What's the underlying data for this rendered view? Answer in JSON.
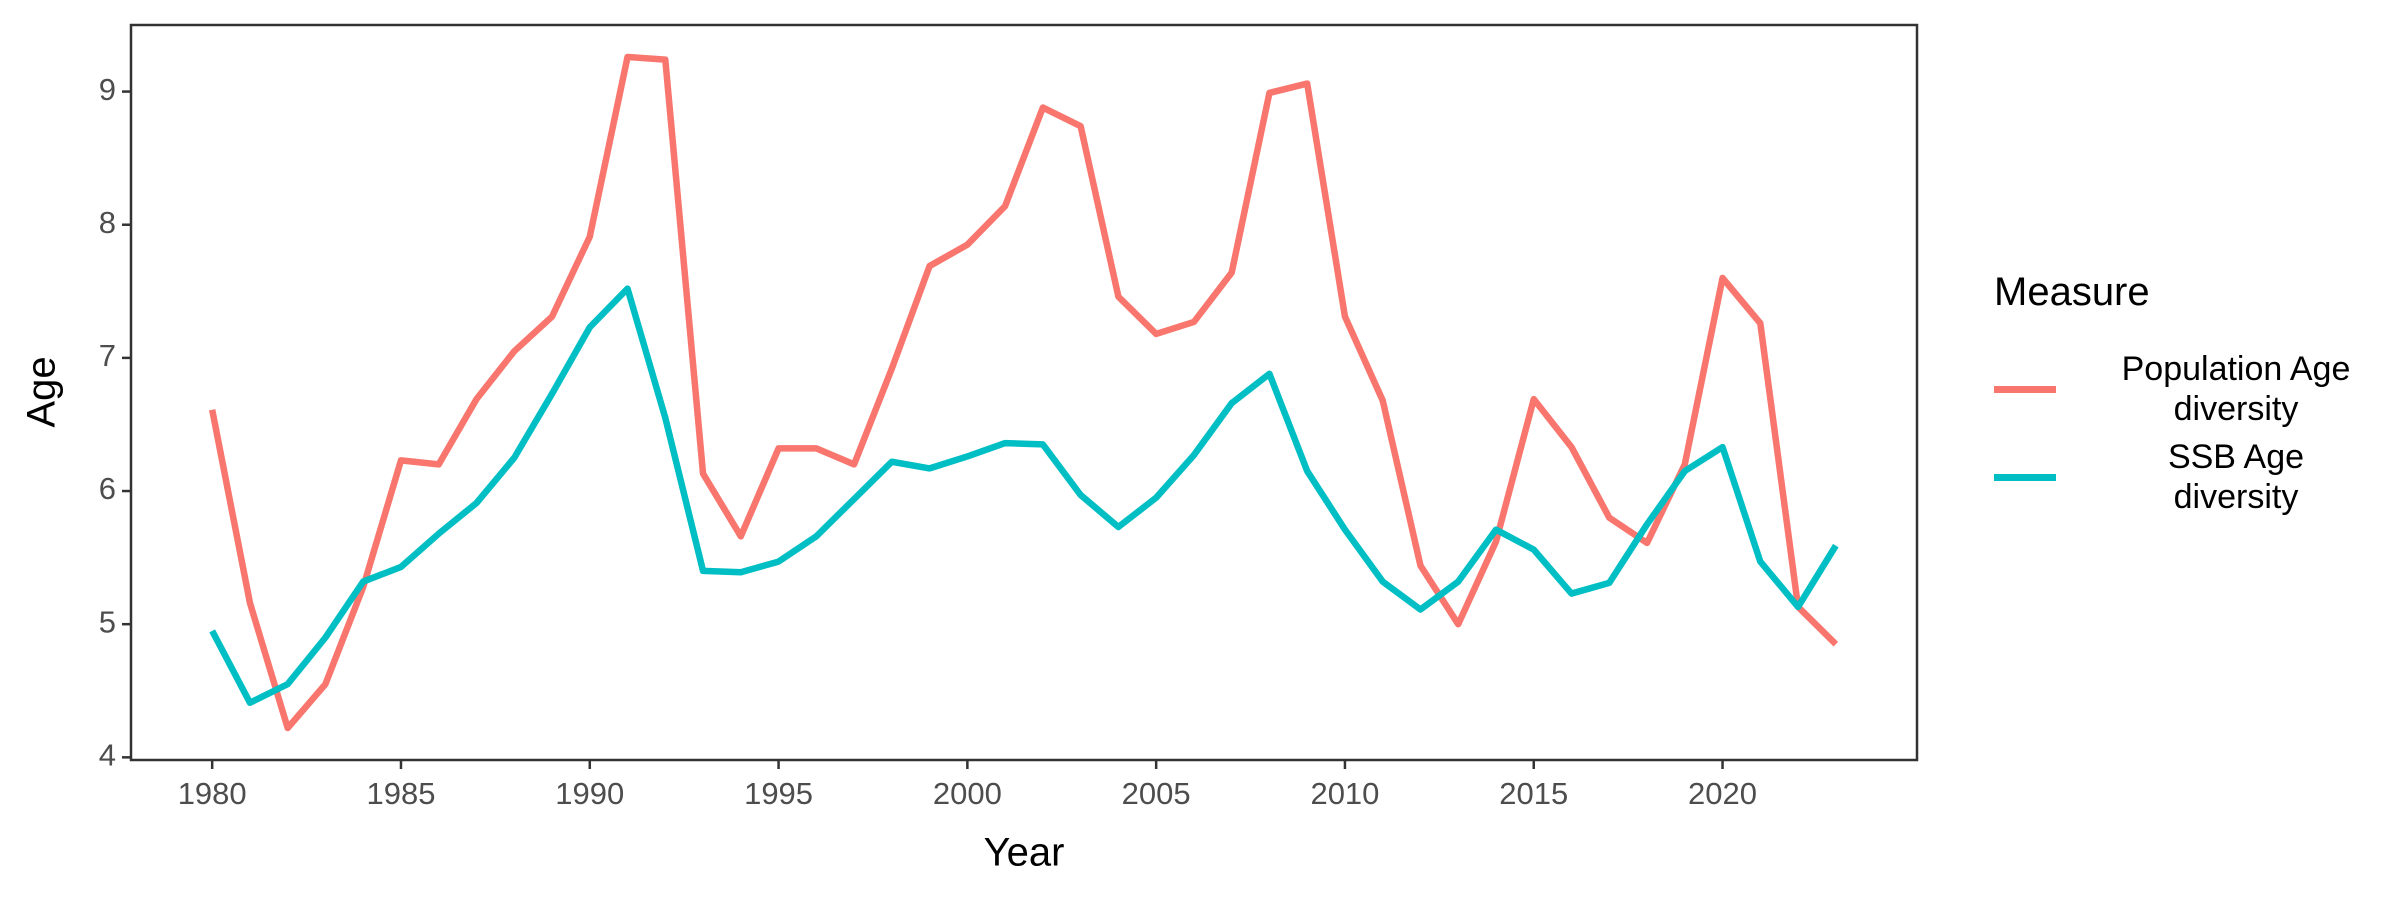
{
  "chart_data": {
    "type": "line",
    "x_label": "Year",
    "y_label": "Age",
    "x": [
      1980,
      1981,
      1982,
      1983,
      1984,
      1985,
      1986,
      1987,
      1988,
      1989,
      1990,
      1991,
      1992,
      1993,
      1994,
      1995,
      1996,
      1997,
      1998,
      1999,
      2000,
      2001,
      2002,
      2003,
      2004,
      2005,
      2006,
      2007,
      2008,
      2009,
      2010,
      2011,
      2012,
      2013,
      2014,
      2015,
      2016,
      2017,
      2018,
      2019,
      2020,
      2021,
      2022,
      2023
    ],
    "series": [
      {
        "name": "Population Age\ndiversity",
        "color": "#f8766d",
        "values": [
          6.61,
          5.16,
          4.22,
          4.55,
          5.28,
          6.23,
          6.2,
          6.69,
          7.05,
          7.31,
          7.91,
          9.26,
          9.24,
          6.13,
          5.66,
          6.32,
          6.32,
          6.2,
          6.92,
          7.69,
          7.85,
          8.14,
          8.88,
          8.74,
          7.46,
          7.18,
          7.27,
          7.64,
          8.99,
          9.06,
          7.31,
          6.68,
          5.44,
          5.0,
          5.62,
          6.69,
          6.33,
          5.8,
          5.61,
          6.2,
          7.6,
          7.26,
          5.13,
          4.85
        ]
      },
      {
        "name": "SSB Age\ndiversity",
        "color": "#00bfc4",
        "values": [
          4.95,
          4.41,
          4.55,
          4.9,
          5.32,
          5.43,
          5.68,
          5.91,
          6.25,
          6.73,
          7.23,
          7.52,
          6.55,
          5.4,
          5.39,
          5.47,
          5.66,
          5.94,
          6.22,
          6.17,
          6.26,
          6.36,
          6.35,
          5.97,
          5.73,
          5.95,
          6.27,
          6.66,
          6.88,
          6.15,
          5.71,
          5.32,
          5.11,
          5.32,
          5.71,
          5.56,
          5.23,
          5.31,
          5.75,
          6.15,
          6.33,
          5.47,
          5.13,
          5.59
        ]
      }
    ],
    "legend_title": "Measure",
    "xlim": [
      1977.85,
      2025.15
    ],
    "xticks": [
      1980,
      1985,
      1990,
      1995,
      2000,
      2005,
      2010,
      2015,
      2020
    ],
    "ylim": [
      3.98,
      9.5
    ],
    "yticks": [
      4,
      5,
      6,
      7,
      8,
      9
    ],
    "grid": false
  }
}
